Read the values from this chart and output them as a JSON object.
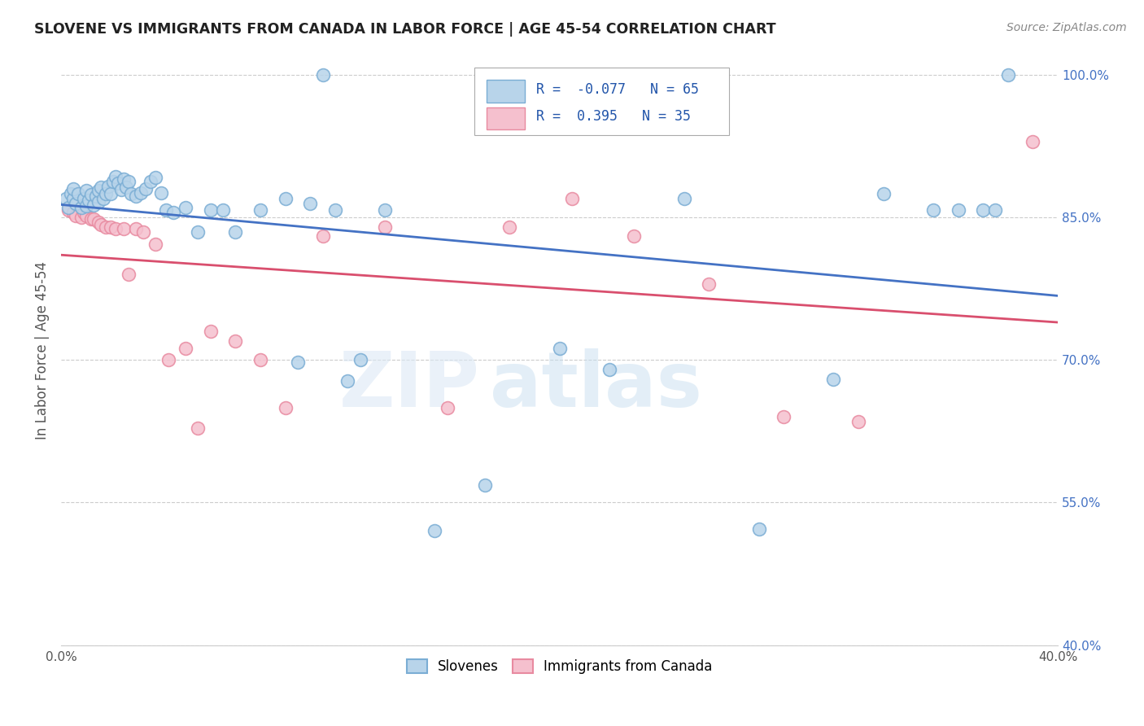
{
  "title": "SLOVENE VS IMMIGRANTS FROM CANADA IN LABOR FORCE | AGE 45-54 CORRELATION CHART",
  "source": "Source: ZipAtlas.com",
  "ylabel": "In Labor Force | Age 45-54",
  "xlim": [
    0.0,
    0.4
  ],
  "ylim": [
    0.4,
    1.02
  ],
  "xticks": [
    0.0,
    0.05,
    0.1,
    0.15,
    0.2,
    0.25,
    0.3,
    0.35,
    0.4
  ],
  "xtick_labels": [
    "0.0%",
    "",
    "",
    "",
    "",
    "",
    "",
    "",
    "40.0%"
  ],
  "yticks_right": [
    1.0,
    0.85,
    0.7,
    0.55,
    0.4
  ],
  "ytick_labels_right": [
    "100.0%",
    "85.0%",
    "70.0%",
    "55.0%",
    "40.0%"
  ],
  "blue_R": -0.077,
  "blue_N": 65,
  "pink_R": 0.395,
  "pink_N": 35,
  "blue_color": "#b8d4ea",
  "blue_edge": "#7aadd4",
  "pink_color": "#f5c0ce",
  "pink_edge": "#e88aa0",
  "blue_line_color": "#4472c4",
  "pink_line_color": "#d94f6e",
  "watermark_zip": "ZIP",
  "watermark_atlas": "atlas",
  "blue_x": [
    0.002,
    0.003,
    0.004,
    0.005,
    0.005,
    0.006,
    0.007,
    0.008,
    0.009,
    0.01,
    0.01,
    0.011,
    0.012,
    0.013,
    0.014,
    0.015,
    0.015,
    0.016,
    0.017,
    0.018,
    0.019,
    0.02,
    0.021,
    0.022,
    0.023,
    0.024,
    0.025,
    0.026,
    0.027,
    0.028,
    0.03,
    0.032,
    0.034,
    0.036,
    0.038,
    0.04,
    0.042,
    0.045,
    0.05,
    0.055,
    0.06,
    0.065,
    0.07,
    0.08,
    0.09,
    0.095,
    0.1,
    0.105,
    0.11,
    0.115,
    0.12,
    0.13,
    0.15,
    0.17,
    0.2,
    0.22,
    0.25,
    0.28,
    0.31,
    0.33,
    0.35,
    0.36,
    0.37,
    0.375,
    0.38
  ],
  "blue_y": [
    0.87,
    0.86,
    0.875,
    0.87,
    0.88,
    0.865,
    0.875,
    0.86,
    0.87,
    0.862,
    0.878,
    0.868,
    0.874,
    0.863,
    0.872,
    0.866,
    0.878,
    0.882,
    0.87,
    0.875,
    0.883,
    0.875,
    0.888,
    0.893,
    0.886,
    0.879,
    0.89,
    0.882,
    0.888,
    0.875,
    0.872,
    0.876,
    0.88,
    0.888,
    0.892,
    0.876,
    0.858,
    0.855,
    0.86,
    0.835,
    0.858,
    0.858,
    0.835,
    0.858,
    0.87,
    0.698,
    0.865,
    1.0,
    0.858,
    0.678,
    0.7,
    0.858,
    0.52,
    0.568,
    0.712,
    0.69,
    0.87,
    0.522,
    0.68,
    0.875,
    0.858,
    0.858,
    0.858,
    0.858,
    1.0
  ],
  "pink_x": [
    0.003,
    0.005,
    0.006,
    0.008,
    0.009,
    0.01,
    0.012,
    0.013,
    0.015,
    0.016,
    0.018,
    0.02,
    0.022,
    0.025,
    0.027,
    0.03,
    0.033,
    0.038,
    0.043,
    0.05,
    0.055,
    0.06,
    0.07,
    0.08,
    0.09,
    0.105,
    0.13,
    0.155,
    0.18,
    0.205,
    0.23,
    0.26,
    0.29,
    0.32,
    0.39
  ],
  "pink_y": [
    0.858,
    0.855,
    0.852,
    0.85,
    0.855,
    0.852,
    0.848,
    0.848,
    0.845,
    0.842,
    0.84,
    0.84,
    0.838,
    0.838,
    0.79,
    0.838,
    0.835,
    0.822,
    0.7,
    0.712,
    0.628,
    0.73,
    0.72,
    0.7,
    0.65,
    0.83,
    0.84,
    0.65,
    0.84,
    0.87,
    0.83,
    0.78,
    0.64,
    0.635,
    0.93
  ]
}
